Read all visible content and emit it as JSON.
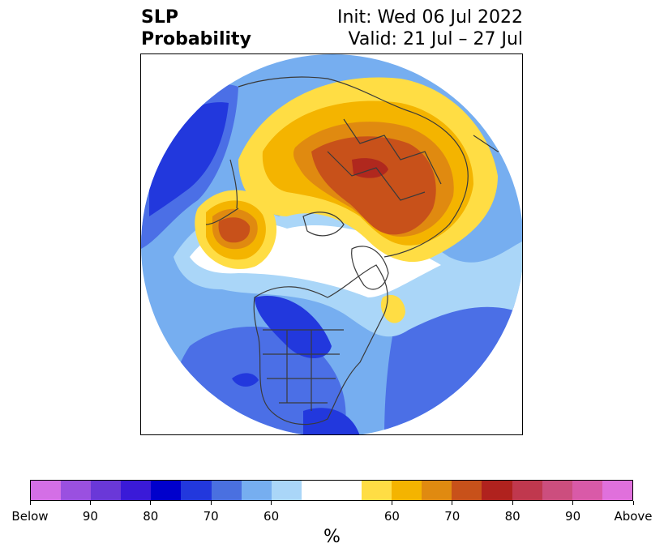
{
  "title": {
    "left_line1": "SLP",
    "left_line2": "Probability",
    "right_line1": "Init: Wed 06 Jul 2022",
    "right_line2": "Valid: 21 Jul – 27 Jul"
  },
  "map": {
    "projection": "north-polar-stereographic",
    "regions_shown": [
      "Arctic",
      "North America",
      "Eurasia"
    ],
    "colors": {
      "below_strong": "#1a1ad6",
      "below_mid": "#4b6fe6",
      "below_light": "#76aef0",
      "below_faint": "#aad6f8",
      "neutral": "#ffffff",
      "above_faint": "#ffdd44",
      "above_light": "#f4b400",
      "above_mid": "#e08a10",
      "above_strong": "#c8511a",
      "above_max": "#b0281e",
      "coastline": "#3a3a3a"
    }
  },
  "colorbar": {
    "colors": [
      "#d46fe6",
      "#9a50e0",
      "#6a38d8",
      "#3a1ad8",
      "#0000cc",
      "#2238dd",
      "#4a70e0",
      "#76aef0",
      "#aad6f8",
      "#ffffff",
      "#ffffff",
      "#ffdd44",
      "#f4b400",
      "#e08a10",
      "#c8511a",
      "#b0221e",
      "#c0384e",
      "#cc4e7e",
      "#d95aa8",
      "#e070dc"
    ],
    "ticks": [
      {
        "label": "Below",
        "frac": 0.0
      },
      {
        "label": "90",
        "frac": 0.1
      },
      {
        "label": "80",
        "frac": 0.2
      },
      {
        "label": "70",
        "frac": 0.3
      },
      {
        "label": "60",
        "frac": 0.4
      },
      {
        "label": "60",
        "frac": 0.6
      },
      {
        "label": "70",
        "frac": 0.7
      },
      {
        "label": "80",
        "frac": 0.8
      },
      {
        "label": "90",
        "frac": 0.9
      },
      {
        "label": "Above",
        "frac": 1.0
      }
    ],
    "unit": "%"
  }
}
